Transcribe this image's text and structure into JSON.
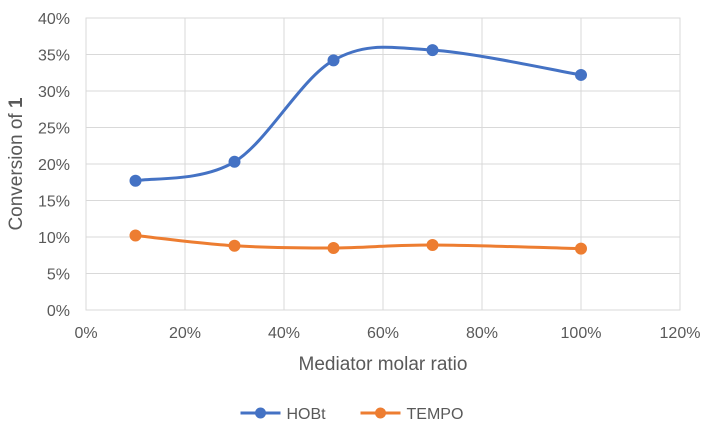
{
  "chart_data": {
    "type": "line",
    "smooth": true,
    "x": [
      0.1,
      0.3,
      0.5,
      0.7,
      1.0
    ],
    "xlim": [
      0,
      1.2
    ],
    "xticks": [
      0,
      0.2,
      0.4,
      0.6,
      0.8,
      1.0,
      1.2
    ],
    "xtick_labels": [
      "0%",
      "20%",
      "40%",
      "60%",
      "80%",
      "100%",
      "120%"
    ],
    "ylim": [
      0,
      0.4
    ],
    "yticks": [
      0,
      0.05,
      0.1,
      0.15,
      0.2,
      0.25,
      0.3,
      0.35,
      0.4
    ],
    "ytick_labels": [
      "0%",
      "5%",
      "10%",
      "15%",
      "20%",
      "25%",
      "30%",
      "35%",
      "40%"
    ],
    "xlabel": "Mediator molar ratio",
    "ylabel_prefix": "Conversion of ",
    "ylabel_bold": "1",
    "grid": "vertical and horizontal major gridlines",
    "legend_position": "bottom",
    "series": [
      {
        "name": "HOBt",
        "color": "#4472C4",
        "values": [
          0.177,
          0.203,
          0.342,
          0.356,
          0.322
        ]
      },
      {
        "name": "TEMPO",
        "color": "#ED7D31",
        "values": [
          0.102,
          0.088,
          0.085,
          0.089,
          0.084
        ]
      }
    ]
  }
}
